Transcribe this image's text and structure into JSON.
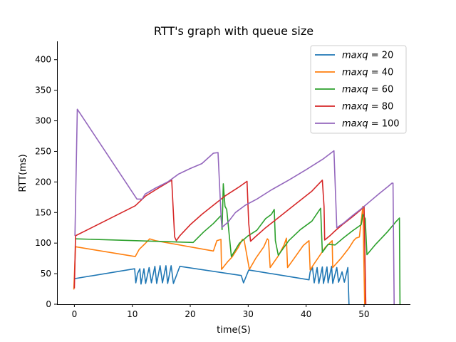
{
  "chart_data": {
    "type": "line",
    "title": "RTT's graph with queue size",
    "xlabel": "time(S)",
    "ylabel": "RTT(ms)",
    "xlim": [
      -3,
      58
    ],
    "ylim": [
      0,
      430
    ],
    "xticks": [
      0,
      10,
      20,
      30,
      40,
      50
    ],
    "yticks": [
      0,
      50,
      100,
      150,
      200,
      250,
      300,
      350,
      400
    ],
    "grid": false,
    "legend_position": "top-right",
    "series": [
      {
        "name": "maxq = 20",
        "legend_var": "maxq",
        "legend_value": "20",
        "color": "#1f77b4",
        "points": [
          [
            0.1,
            42
          ],
          [
            10.4,
            58
          ],
          [
            10.6,
            35
          ],
          [
            10.9,
            50
          ],
          [
            11.3,
            58
          ],
          [
            11.5,
            33
          ],
          [
            12.0,
            58
          ],
          [
            12.3,
            34
          ],
          [
            12.9,
            60
          ],
          [
            13.3,
            35
          ],
          [
            13.9,
            62
          ],
          [
            14.2,
            34
          ],
          [
            14.8,
            63
          ],
          [
            15.2,
            35
          ],
          [
            15.8,
            63
          ],
          [
            16.1,
            34
          ],
          [
            16.7,
            63
          ],
          [
            17.1,
            34
          ],
          [
            18.2,
            62
          ],
          [
            28.8,
            47
          ],
          [
            29.2,
            35
          ],
          [
            30.1,
            56
          ],
          [
            40.5,
            40
          ],
          [
            40.7,
            53
          ],
          [
            41.1,
            60
          ],
          [
            41.4,
            35
          ],
          [
            41.9,
            60
          ],
          [
            42.2,
            34
          ],
          [
            42.8,
            61
          ],
          [
            43.0,
            34
          ],
          [
            43.6,
            61
          ],
          [
            43.8,
            35
          ],
          [
            44.4,
            62
          ],
          [
            44.6,
            34
          ],
          [
            45.3,
            60
          ],
          [
            45.6,
            36
          ],
          [
            46.2,
            53
          ],
          [
            46.6,
            36
          ],
          [
            47.2,
            60
          ],
          [
            47.4,
            0
          ]
        ]
      },
      {
        "name": "maxq = 40",
        "legend_var": "maxq",
        "legend_value": "40",
        "color": "#ff7f0e",
        "points": [
          [
            -0.1,
            24
          ],
          [
            0.2,
            94
          ],
          [
            10.5,
            78
          ],
          [
            11.2,
            90
          ],
          [
            12.2,
            99
          ],
          [
            13.0,
            107
          ],
          [
            14.0,
            104
          ],
          [
            24.0,
            87
          ],
          [
            24.6,
            104
          ],
          [
            25.3,
            106
          ],
          [
            25.4,
            57
          ],
          [
            26.5,
            70
          ],
          [
            27.2,
            77
          ],
          [
            28.3,
            93
          ],
          [
            29.0,
            106
          ],
          [
            29.3,
            105
          ],
          [
            30.2,
            57
          ],
          [
            31.3,
            75
          ],
          [
            32.7,
            94
          ],
          [
            33.3,
            107
          ],
          [
            33.5,
            105
          ],
          [
            33.8,
            60
          ],
          [
            35.2,
            79
          ],
          [
            36.2,
            97
          ],
          [
            36.6,
            108
          ],
          [
            36.8,
            60
          ],
          [
            38.0,
            76
          ],
          [
            39.5,
            96
          ],
          [
            40.5,
            104
          ],
          [
            40.7,
            56
          ],
          [
            41.3,
            65
          ],
          [
            41.8,
            72
          ],
          [
            43.3,
            93
          ],
          [
            44.5,
            104
          ],
          [
            44.6,
            60
          ],
          [
            46.1,
            76
          ],
          [
            47.4,
            92
          ],
          [
            48.2,
            104
          ],
          [
            48.6,
            108
          ],
          [
            49.2,
            110
          ],
          [
            49.8,
            160
          ],
          [
            50.1,
            0
          ]
        ]
      },
      {
        "name": "maxq = 60",
        "legend_var": "maxq",
        "legend_value": "60",
        "color": "#2ca02c",
        "points": [
          [
            0.2,
            107
          ],
          [
            20.5,
            101
          ],
          [
            22.3,
            118
          ],
          [
            24.0,
            132
          ],
          [
            25.3,
            145
          ],
          [
            25.5,
            122
          ],
          [
            25.7,
            197
          ],
          [
            26.0,
            160
          ],
          [
            26.3,
            155
          ],
          [
            27.1,
            78
          ],
          [
            28.5,
            100
          ],
          [
            30.0,
            112
          ],
          [
            31.5,
            121
          ],
          [
            33.0,
            140
          ],
          [
            34.0,
            147
          ],
          [
            34.5,
            155
          ],
          [
            34.7,
            104
          ],
          [
            35.2,
            80
          ],
          [
            37.0,
            104
          ],
          [
            39.0,
            122
          ],
          [
            41.0,
            136
          ],
          [
            42.0,
            150
          ],
          [
            42.5,
            157
          ],
          [
            42.8,
            85
          ],
          [
            43.8,
            98
          ],
          [
            45.0,
            97
          ],
          [
            46.5,
            109
          ],
          [
            48.0,
            120
          ],
          [
            49.5,
            130
          ],
          [
            49.8,
            147
          ],
          [
            50.2,
            140
          ],
          [
            50.5,
            81
          ],
          [
            52.0,
            98
          ],
          [
            54.0,
            118
          ],
          [
            55.5,
            135
          ],
          [
            56.1,
            141
          ],
          [
            56.2,
            0
          ]
        ]
      },
      {
        "name": "maxq = 80",
        "legend_var": "maxq",
        "legend_value": "80",
        "color": "#d62728",
        "points": [
          [
            0.0,
            26
          ],
          [
            0.2,
            112
          ],
          [
            10.5,
            161
          ],
          [
            12.3,
            177
          ],
          [
            14.5,
            190
          ],
          [
            16.8,
            203
          ],
          [
            17.3,
            110
          ],
          [
            17.6,
            104
          ],
          [
            18.2,
            112
          ],
          [
            20.0,
            130
          ],
          [
            22.0,
            147
          ],
          [
            24.0,
            162
          ],
          [
            26.0,
            177
          ],
          [
            28.3,
            191
          ],
          [
            29.8,
            201
          ],
          [
            30.1,
            132
          ],
          [
            30.4,
            103
          ],
          [
            31.2,
            110
          ],
          [
            33.0,
            125
          ],
          [
            35.0,
            140
          ],
          [
            37.0,
            155
          ],
          [
            39.0,
            170
          ],
          [
            41.0,
            185
          ],
          [
            42.8,
            203
          ],
          [
            43.1,
            160
          ],
          [
            43.2,
            105
          ],
          [
            44.1,
            112
          ],
          [
            45.0,
            120
          ],
          [
            46.5,
            132
          ],
          [
            48.0,
            143
          ],
          [
            49.5,
            155
          ],
          [
            50.0,
            160
          ],
          [
            50.3,
            0
          ]
        ]
      },
      {
        "name": "maxq = 100",
        "legend_var": "maxq",
        "legend_value": "100",
        "color": "#9467bd",
        "points": [
          [
            0.1,
            112
          ],
          [
            0.5,
            319
          ],
          [
            10.8,
            172
          ],
          [
            11.7,
            172
          ],
          [
            12.2,
            180
          ],
          [
            14.0,
            190
          ],
          [
            16.1,
            200
          ],
          [
            18.0,
            213
          ],
          [
            20.0,
            222
          ],
          [
            22.0,
            230
          ],
          [
            24.0,
            247
          ],
          [
            24.8,
            248
          ],
          [
            25.3,
            148
          ],
          [
            25.5,
            126
          ],
          [
            26.5,
            134
          ],
          [
            27.8,
            150
          ],
          [
            29.5,
            162
          ],
          [
            31.5,
            172
          ],
          [
            34.0,
            187
          ],
          [
            37.0,
            203
          ],
          [
            40.0,
            220
          ],
          [
            43.0,
            238
          ],
          [
            44.8,
            251
          ],
          [
            45.1,
            175
          ],
          [
            45.3,
            125
          ],
          [
            46.5,
            133
          ],
          [
            48.0,
            145
          ],
          [
            49.5,
            156
          ],
          [
            51.0,
            168
          ],
          [
            52.5,
            180
          ],
          [
            54.2,
            193
          ],
          [
            54.8,
            198
          ],
          [
            55.0,
            198
          ],
          [
            55.2,
            0
          ]
        ]
      }
    ]
  }
}
